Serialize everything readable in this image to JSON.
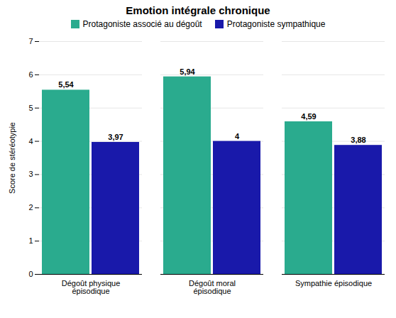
{
  "chart_data": {
    "type": "bar",
    "title": "Emotion intégrale chronique",
    "ylabel": "Score de stéréotypie",
    "categories": [
      "Dégoût physique\népisodique",
      "Dégoût moral\népisodique",
      "Sympathie épisodique"
    ],
    "series": [
      {
        "name": "Protagoniste associé au dégoût",
        "color": "#2aab8e",
        "values": [
          5.54,
          5.94,
          4.59
        ],
        "value_labels": [
          "5,54",
          "5,94",
          "4,59"
        ]
      },
      {
        "name": "Protagoniste sympathique",
        "color": "#1919aa",
        "values": [
          3.97,
          4.0,
          3.88
        ],
        "value_labels": [
          "3,97",
          "4",
          "3,88"
        ]
      }
    ],
    "ylim": [
      0,
      7
    ],
    "yticks": [
      0,
      1,
      2,
      3,
      4,
      5,
      6,
      7
    ],
    "grid": true,
    "legend": "top",
    "data_labels": true
  }
}
